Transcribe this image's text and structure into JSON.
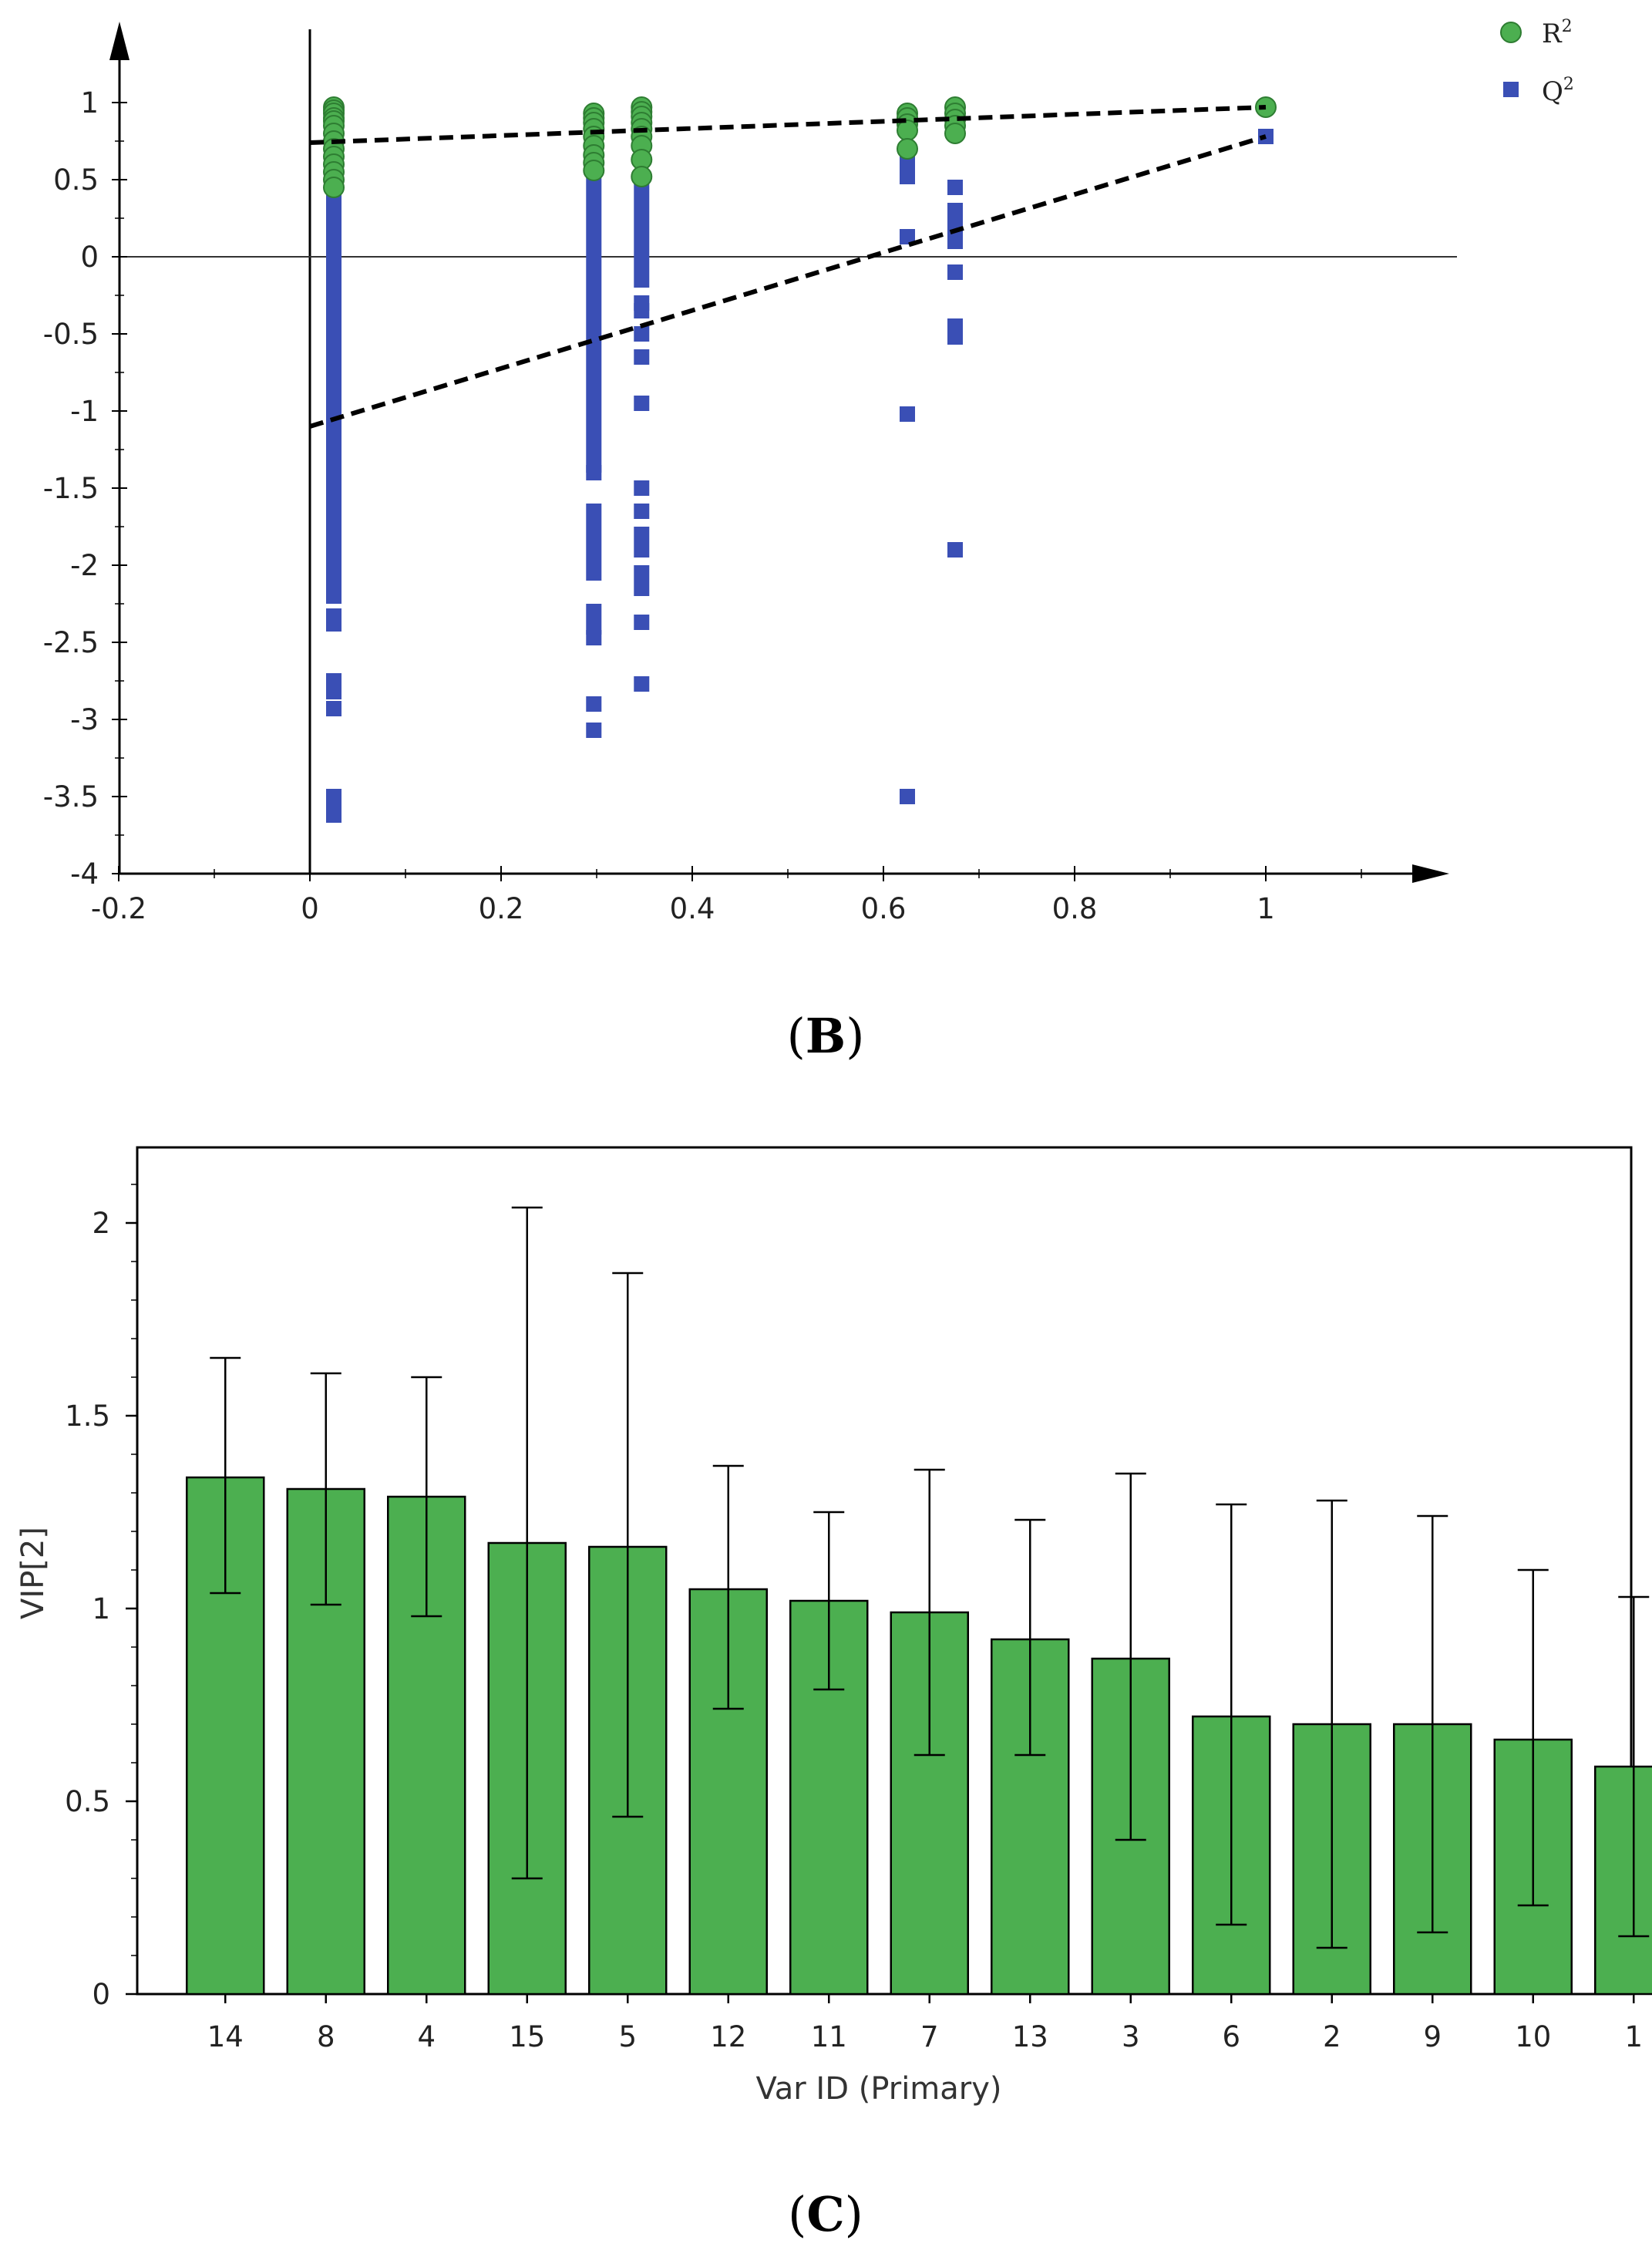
{
  "panel_labels": {
    "b": {
      "open": "(",
      "letter": "B",
      "close": ")"
    },
    "c": {
      "open": "(",
      "letter": "C",
      "close": ")"
    }
  },
  "colors": {
    "green": "#4caf50",
    "green_dark": "#2e7d32",
    "blue": "#3a4fb5",
    "axis": "#000000"
  },
  "chart_data": [
    {
      "id": "B",
      "type": "scatter",
      "title": "",
      "xlabel": "",
      "ylabel": "",
      "xlim": [
        -0.2,
        1.2
      ],
      "ylim": [
        -4,
        1.4
      ],
      "x_ticks": [
        -0.2,
        0,
        0.2,
        0.4,
        0.6,
        0.8,
        1
      ],
      "x_tick_labels": [
        "-0.2",
        "0",
        "0.2",
        "0.4",
        "0.6",
        "0.8",
        "1"
      ],
      "y_ticks": [
        1,
        0.5,
        0,
        -0.5,
        -1,
        -1.5,
        -2,
        -2.5,
        -3,
        -3.5,
        -4
      ],
      "y_tick_labels": [
        "1",
        "0.5",
        "0",
        "-0.5",
        "-1",
        "-1.5",
        "-2",
        "-2.5",
        "-3",
        "-3.5",
        "-4"
      ],
      "legend": {
        "position": "top-right",
        "entries": [
          {
            "name": "R",
            "sup": "2",
            "marker": "circle"
          },
          {
            "name": "Q",
            "sup": "2",
            "marker": "square"
          }
        ]
      },
      "series": [
        {
          "name": "R2",
          "marker": "circle",
          "points": [
            [
              0.025,
              0.97
            ],
            [
              0.025,
              0.95
            ],
            [
              0.025,
              0.93
            ],
            [
              0.025,
              0.9
            ],
            [
              0.025,
              0.88
            ],
            [
              0.025,
              0.85
            ],
            [
              0.025,
              0.8
            ],
            [
              0.025,
              0.75
            ],
            [
              0.025,
              0.7
            ],
            [
              0.025,
              0.65
            ],
            [
              0.025,
              0.6
            ],
            [
              0.025,
              0.55
            ],
            [
              0.025,
              0.5
            ],
            [
              0.025,
              0.45
            ],
            [
              0.297,
              0.93
            ],
            [
              0.297,
              0.9
            ],
            [
              0.297,
              0.87
            ],
            [
              0.297,
              0.83
            ],
            [
              0.297,
              0.78
            ],
            [
              0.297,
              0.72
            ],
            [
              0.297,
              0.66
            ],
            [
              0.297,
              0.61
            ],
            [
              0.297,
              0.56
            ],
            [
              0.347,
              0.97
            ],
            [
              0.347,
              0.94
            ],
            [
              0.347,
              0.91
            ],
            [
              0.347,
              0.87
            ],
            [
              0.347,
              0.83
            ],
            [
              0.347,
              0.78
            ],
            [
              0.347,
              0.72
            ],
            [
              0.347,
              0.63
            ],
            [
              0.347,
              0.52
            ],
            [
              0.625,
              0.93
            ],
            [
              0.625,
              0.9
            ],
            [
              0.625,
              0.86
            ],
            [
              0.625,
              0.82
            ],
            [
              0.625,
              0.7
            ],
            [
              0.675,
              0.97
            ],
            [
              0.675,
              0.93
            ],
            [
              0.675,
              0.89
            ],
            [
              0.675,
              0.85
            ],
            [
              0.675,
              0.8
            ],
            [
              1.0,
              0.97
            ]
          ]
        },
        {
          "name": "Q2",
          "marker": "square",
          "points": [
            [
              0.025,
              0.83
            ],
            [
              0.025,
              0.72
            ],
            [
              0.025,
              0.6
            ],
            [
              0.025,
              0.48
            ],
            [
              0.025,
              0.38
            ],
            [
              0.025,
              0.3
            ],
            [
              0.025,
              0.22
            ],
            [
              0.025,
              0.14
            ],
            [
              0.025,
              0.06
            ],
            [
              0.025,
              -0.02
            ],
            [
              0.025,
              -0.1
            ],
            [
              0.025,
              -0.18
            ],
            [
              0.025,
              -0.26
            ],
            [
              0.025,
              -0.34
            ],
            [
              0.025,
              -0.42
            ],
            [
              0.025,
              -0.5
            ],
            [
              0.025,
              -0.58
            ],
            [
              0.025,
              -0.66
            ],
            [
              0.025,
              -0.74
            ],
            [
              0.025,
              -0.82
            ],
            [
              0.025,
              -0.9
            ],
            [
              0.025,
              -0.98
            ],
            [
              0.025,
              -1.06
            ],
            [
              0.025,
              -1.14
            ],
            [
              0.025,
              -1.22
            ],
            [
              0.025,
              -1.3
            ],
            [
              0.025,
              -1.38
            ],
            [
              0.025,
              -1.46
            ],
            [
              0.025,
              -1.54
            ],
            [
              0.025,
              -1.62
            ],
            [
              0.025,
              -1.7
            ],
            [
              0.025,
              -1.78
            ],
            [
              0.025,
              -1.86
            ],
            [
              0.025,
              -1.94
            ],
            [
              0.025,
              -2.02
            ],
            [
              0.025,
              -2.1
            ],
            [
              0.025,
              -2.2
            ],
            [
              0.025,
              -2.33
            ],
            [
              0.025,
              -2.38
            ],
            [
              0.025,
              -2.75
            ],
            [
              0.025,
              -2.82
            ],
            [
              0.025,
              -2.93
            ],
            [
              0.025,
              -3.5
            ],
            [
              0.025,
              -3.57
            ],
            [
              0.025,
              -3.62
            ],
            [
              0.297,
              0.55
            ],
            [
              0.297,
              0.45
            ],
            [
              0.297,
              0.35
            ],
            [
              0.297,
              0.25
            ],
            [
              0.297,
              0.15
            ],
            [
              0.297,
              0.05
            ],
            [
              0.297,
              -0.05
            ],
            [
              0.297,
              -0.15
            ],
            [
              0.297,
              -0.25
            ],
            [
              0.297,
              -0.35
            ],
            [
              0.297,
              -0.45
            ],
            [
              0.297,
              -0.55
            ],
            [
              0.297,
              -0.65
            ],
            [
              0.297,
              -0.75
            ],
            [
              0.297,
              -0.85
            ],
            [
              0.297,
              -0.95
            ],
            [
              0.297,
              -1.05
            ],
            [
              0.297,
              -1.15
            ],
            [
              0.297,
              -1.25
            ],
            [
              0.297,
              -1.35
            ],
            [
              0.297,
              -1.4
            ],
            [
              0.297,
              -1.65
            ],
            [
              0.297,
              -1.75
            ],
            [
              0.297,
              -1.85
            ],
            [
              0.297,
              -1.95
            ],
            [
              0.297,
              -2.05
            ],
            [
              0.297,
              -2.3
            ],
            [
              0.297,
              -2.4
            ],
            [
              0.297,
              -2.47
            ],
            [
              0.297,
              -2.9
            ],
            [
              0.297,
              -3.07
            ],
            [
              0.347,
              0.45
            ],
            [
              0.347,
              0.35
            ],
            [
              0.347,
              0.25
            ],
            [
              0.347,
              0.15
            ],
            [
              0.347,
              0.05
            ],
            [
              0.347,
              -0.05
            ],
            [
              0.347,
              -0.15
            ],
            [
              0.347,
              -0.3
            ],
            [
              0.347,
              -0.35
            ],
            [
              0.347,
              -0.5
            ],
            [
              0.347,
              -0.65
            ],
            [
              0.347,
              -0.95
            ],
            [
              0.347,
              -1.5
            ],
            [
              0.347,
              -1.65
            ],
            [
              0.347,
              -1.8
            ],
            [
              0.347,
              -1.9
            ],
            [
              0.347,
              -2.05
            ],
            [
              0.347,
              -2.15
            ],
            [
              0.347,
              -2.37
            ],
            [
              0.347,
              -2.77
            ],
            [
              0.625,
              0.6
            ],
            [
              0.625,
              0.52
            ],
            [
              0.625,
              0.13
            ],
            [
              0.625,
              -1.02
            ],
            [
              0.625,
              -3.5
            ],
            [
              0.675,
              0.45
            ],
            [
              0.675,
              0.3
            ],
            [
              0.675,
              0.25
            ],
            [
              0.675,
              0.2
            ],
            [
              0.675,
              0.1
            ],
            [
              0.675,
              -0.1
            ],
            [
              0.675,
              -0.45
            ],
            [
              0.675,
              -0.52
            ],
            [
              0.675,
              -1.9
            ],
            [
              1.0,
              0.78
            ]
          ]
        }
      ],
      "regression_lines": [
        {
          "name": "R2 fit",
          "from": [
            0,
            0.74
          ],
          "to": [
            1,
            0.97
          ]
        },
        {
          "name": "Q2 fit",
          "from": [
            0,
            -1.1
          ],
          "to": [
            1,
            0.78
          ]
        }
      ]
    },
    {
      "id": "C",
      "type": "bar",
      "title": "",
      "xlabel": "Var ID (Primary)",
      "ylabel": "VIP[2]",
      "ylim": [
        0,
        2.2
      ],
      "y_ticks": [
        0,
        0.5,
        1,
        1.5,
        2
      ],
      "y_tick_labels": [
        "0",
        "0.5",
        "1",
        "1.5",
        "2"
      ],
      "categories": [
        "14",
        "8",
        "4",
        "15",
        "5",
        "12",
        "11",
        "7",
        "13",
        "3",
        "6",
        "2",
        "9",
        "10",
        "1"
      ],
      "values": [
        1.34,
        1.31,
        1.29,
        1.17,
        1.16,
        1.05,
        1.02,
        0.99,
        0.92,
        0.87,
        0.72,
        0.7,
        0.7,
        0.66,
        0.59
      ],
      "error_low": [
        1.04,
        1.01,
        0.98,
        0.3,
        0.46,
        0.74,
        0.79,
        0.62,
        0.62,
        0.4,
        0.18,
        0.12,
        0.16,
        0.23,
        0.15
      ],
      "error_high": [
        1.65,
        1.61,
        1.6,
        2.04,
        1.87,
        1.37,
        1.25,
        1.36,
        1.23,
        1.35,
        1.27,
        1.28,
        1.24,
        1.1,
        1.03
      ]
    }
  ]
}
